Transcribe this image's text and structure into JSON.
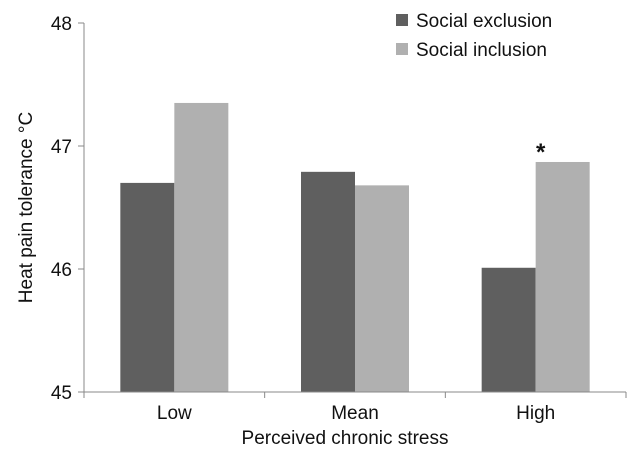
{
  "chart_data": {
    "type": "bar",
    "title": "",
    "xlabel": "Perceived chronic stress",
    "ylabel": "Heat pain tolerance °C",
    "categories": [
      "Low",
      "Mean",
      "High"
    ],
    "ylim": [
      45,
      48
    ],
    "yticks": [
      "45",
      "46",
      "47",
      "48"
    ],
    "grid": false,
    "legend_position": "top-right",
    "series": [
      {
        "name": "Social exclusion",
        "color": "#5f5f5f",
        "values": [
          46.7,
          46.79,
          46.01
        ]
      },
      {
        "name": "Social inclusion",
        "color": "#b0b0b0",
        "values": [
          47.35,
          46.68,
          46.87
        ]
      }
    ],
    "annotations": [
      {
        "text": "*",
        "category": "High"
      }
    ]
  }
}
